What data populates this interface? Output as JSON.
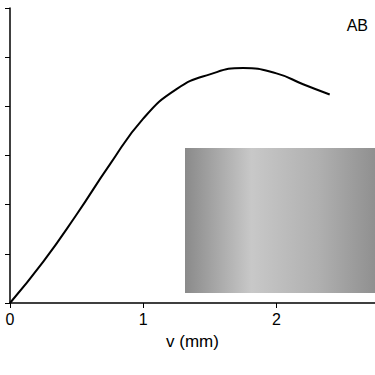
{
  "chart_data": {
    "type": "line",
    "title": "AB",
    "x_label": "v (mm)",
    "x": [
      0,
      0.25,
      0.5,
      0.75,
      1.0,
      1.25,
      1.5,
      1.75,
      2.0,
      2.2,
      2.4
    ],
    "values": [
      0,
      0.84,
      1.8,
      2.82,
      3.75,
      4.35,
      4.65,
      4.78,
      4.67,
      4.45,
      4.24
    ],
    "color": "#000000",
    "xlim": [
      0,
      2.74
    ],
    "xticks": [
      0,
      1,
      2
    ],
    "ylim": [
      0,
      6
    ],
    "yticks": [
      0,
      1,
      2,
      3,
      4,
      5,
      6
    ],
    "grid": false,
    "tick_labels": "x"
  }
}
